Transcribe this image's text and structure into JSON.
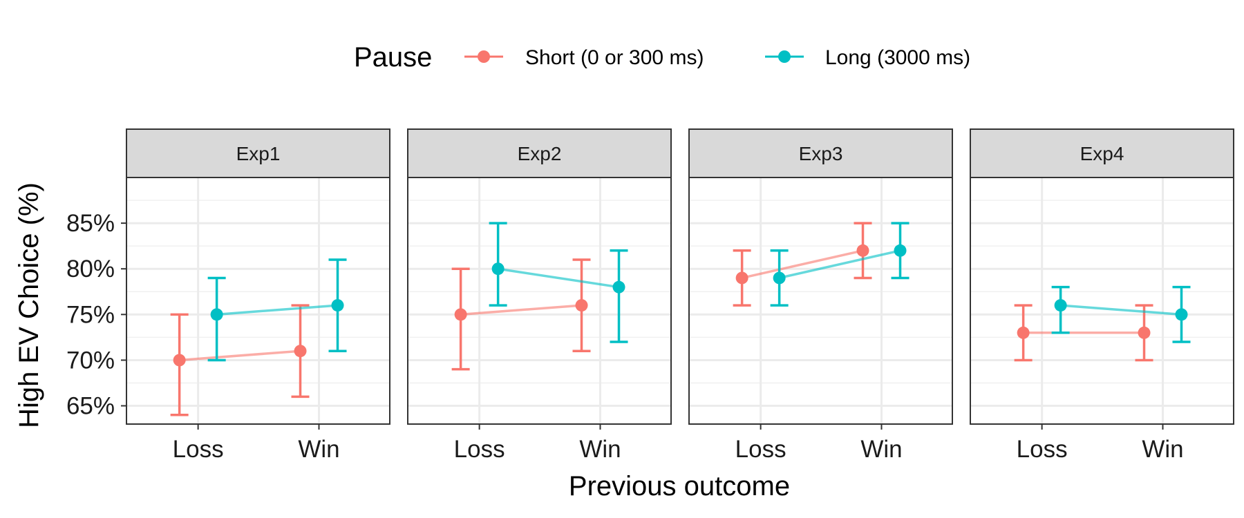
{
  "chart_data": {
    "type": "line",
    "facet_by": "experiment",
    "panels": [
      "Exp1",
      "Exp2",
      "Exp3",
      "Exp4"
    ],
    "categories": [
      "Loss",
      "Win"
    ],
    "xlabel": "Previous outcome",
    "ylabel": "High EV Choice (%)",
    "ylim": [
      63,
      90
    ],
    "yticks": [
      65,
      70,
      75,
      80,
      85
    ],
    "ytick_labels": [
      "65%",
      "70%",
      "75%",
      "80%",
      "85%"
    ],
    "grid": true,
    "legend": {
      "title": "Pause",
      "position": "top",
      "entries": [
        "Short (0 or 300 ms)",
        "Long (3000 ms)"
      ]
    },
    "series": [
      {
        "name": "Short (0 or 300 ms)",
        "color": "#F8766D",
        "panels": [
          {
            "values": [
              70,
              71
            ],
            "lower": [
              64,
              66
            ],
            "upper": [
              75,
              76
            ]
          },
          {
            "values": [
              75,
              76
            ],
            "lower": [
              69,
              71
            ],
            "upper": [
              80,
              81
            ]
          },
          {
            "values": [
              79,
              82
            ],
            "lower": [
              76,
              79
            ],
            "upper": [
              82,
              85
            ]
          },
          {
            "values": [
              73,
              73
            ],
            "lower": [
              70,
              70
            ],
            "upper": [
              76,
              76
            ]
          }
        ]
      },
      {
        "name": "Long (3000 ms)",
        "color": "#00BFC4",
        "panels": [
          {
            "values": [
              75,
              76
            ],
            "lower": [
              70,
              71
            ],
            "upper": [
              79,
              81
            ]
          },
          {
            "values": [
              80,
              78
            ],
            "lower": [
              76,
              72
            ],
            "upper": [
              85,
              82
            ]
          },
          {
            "values": [
              79,
              82
            ],
            "lower": [
              76,
              79
            ],
            "upper": [
              82,
              85
            ]
          },
          {
            "values": [
              76,
              75
            ],
            "lower": [
              73,
              72
            ],
            "upper": [
              78,
              78
            ]
          }
        ]
      }
    ]
  }
}
